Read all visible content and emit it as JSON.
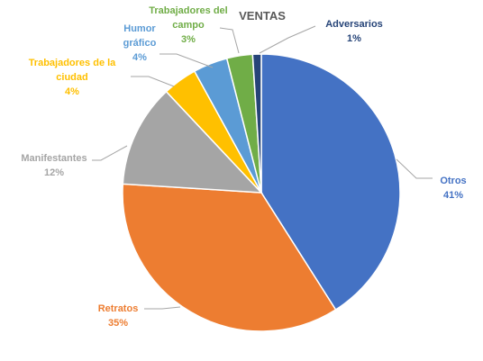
{
  "chart_data": {
    "type": "pie",
    "title": "VENTAS",
    "categories": [
      "Otros",
      "Retratos",
      "Manifestantes",
      "Trabajadores de la ciudad",
      "Humor gráfico",
      "Trabajadores del campo",
      "Adversarios"
    ],
    "values": [
      41,
      35,
      12,
      4,
      4,
      3,
      1
    ],
    "value_labels": [
      "41%",
      "35%",
      "12%",
      "4%",
      "4%",
      "3%",
      "1%"
    ],
    "colors": [
      "#4472c4",
      "#ed7d31",
      "#a5a5a5",
      "#ffc000",
      "#5b9bd5",
      "#70ad47",
      "#264478"
    ],
    "label_lines": [
      [
        "Otros"
      ],
      [
        "Retratos"
      ],
      [
        "Manifestantes"
      ],
      [
        "Trabajadores de la",
        "ciudad"
      ],
      [
        "Humor",
        "gráfico"
      ],
      [
        "Trabajadores del",
        "campo"
      ],
      [
        "Adversarios"
      ]
    ],
    "legend": "none"
  }
}
